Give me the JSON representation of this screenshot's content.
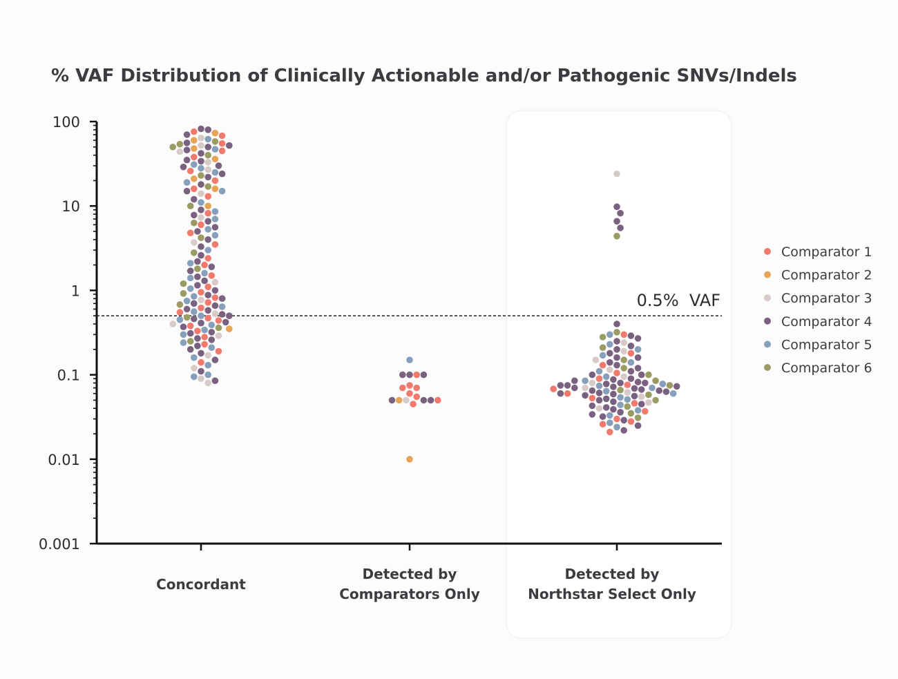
{
  "chart_data": {
    "type": "scatter",
    "subtype": "beeswarm",
    "title": "% VAF Distribution of Clinically Actionable and/or Pathogenic SNVs/Indels",
    "y_scale": "log",
    "ylim": [
      0.001,
      100
    ],
    "y_ticks": [
      {
        "value": 100,
        "label": "100"
      },
      {
        "value": 10,
        "label": "10"
      },
      {
        "value": 1,
        "label": "1"
      },
      {
        "value": 0.1,
        "label": "0.1"
      },
      {
        "value": 0.01,
        "label": "0.01"
      },
      {
        "value": 0.001,
        "label": "0.001"
      }
    ],
    "categories": [
      {
        "lines": [
          "Concordant"
        ],
        "highlight": false
      },
      {
        "lines": [
          "Detected by",
          "Comparators Only"
        ],
        "highlight": false
      },
      {
        "lines": [
          "Detected by",
          "Northstar Select Only"
        ],
        "highlight": true
      }
    ],
    "reference_line": {
      "value": 0.5,
      "label": "0.5%  VAF"
    },
    "legend_position": "right",
    "series": [
      {
        "name": "Comparator 1",
        "color": "#f07a6e"
      },
      {
        "name": "Comparator 2",
        "color": "#e8a456"
      },
      {
        "name": "Comparator 3",
        "color": "#d8cbc7"
      },
      {
        "name": "Comparator 4",
        "color": "#7a6180"
      },
      {
        "name": "Comparator 5",
        "color": "#869fbb"
      },
      {
        "name": "Comparator 6",
        "color": "#9a9c64"
      }
    ],
    "points": {
      "Concordant": [
        [
          82,
          3
        ],
        [
          80,
          3
        ],
        [
          76,
          0
        ],
        [
          73,
          1
        ],
        [
          70,
          3
        ],
        [
          68,
          0
        ],
        [
          64,
          2
        ],
        [
          62,
          4
        ],
        [
          60,
          1
        ],
        [
          58,
          5
        ],
        [
          56,
          3
        ],
        [
          55,
          0
        ],
        [
          54,
          5
        ],
        [
          52,
          2
        ],
        [
          52,
          3
        ],
        [
          50,
          3
        ],
        [
          50,
          5
        ],
        [
          48,
          1
        ],
        [
          47,
          4
        ],
        [
          46,
          3
        ],
        [
          45,
          0
        ],
        [
          44,
          2
        ],
        [
          42,
          3
        ],
        [
          40,
          5
        ],
        [
          38,
          0
        ],
        [
          36,
          1
        ],
        [
          35,
          3
        ],
        [
          34,
          3
        ],
        [
          33,
          2
        ],
        [
          31,
          4
        ],
        [
          30,
          3
        ],
        [
          29,
          3
        ],
        [
          28,
          4
        ],
        [
          27,
          2
        ],
        [
          26,
          0
        ],
        [
          25,
          4
        ],
        [
          24,
          3
        ],
        [
          23,
          5
        ],
        [
          22,
          3
        ],
        [
          21,
          1
        ],
        [
          20,
          0
        ],
        [
          19,
          4
        ],
        [
          18,
          3
        ],
        [
          17,
          5
        ],
        [
          16,
          0
        ],
        [
          16,
          1
        ],
        [
          15,
          3
        ],
        [
          15,
          4
        ],
        [
          14,
          2
        ],
        [
          13,
          0
        ],
        [
          12,
          3
        ],
        [
          11,
          4
        ],
        [
          10,
          1
        ],
        [
          10,
          5
        ],
        [
          9,
          3
        ],
        [
          8.6,
          4
        ],
        [
          8.2,
          0
        ],
        [
          7.8,
          3
        ],
        [
          7.3,
          2
        ],
        [
          7,
          4
        ],
        [
          6.6,
          3
        ],
        [
          6.3,
          5
        ],
        [
          6,
          0
        ],
        [
          5.6,
          3
        ],
        [
          5.3,
          4
        ],
        [
          5,
          3
        ],
        [
          4.8,
          0
        ],
        [
          4.5,
          4
        ],
        [
          4.2,
          5
        ],
        [
          4,
          3
        ],
        [
          3.7,
          2
        ],
        [
          3.5,
          0
        ],
        [
          3.3,
          3
        ],
        [
          3,
          4
        ],
        [
          2.8,
          5
        ],
        [
          2.6,
          3
        ],
        [
          2.4,
          0
        ],
        [
          2.2,
          3
        ],
        [
          2.1,
          4
        ],
        [
          2,
          0
        ],
        [
          1.9,
          3
        ],
        [
          1.8,
          5
        ],
        [
          1.7,
          3
        ],
        [
          1.6,
          4
        ],
        [
          1.5,
          0
        ],
        [
          1.45,
          3
        ],
        [
          1.4,
          4
        ],
        [
          1.3,
          3
        ],
        [
          1.25,
          2
        ],
        [
          1.2,
          5
        ],
        [
          1.15,
          3
        ],
        [
          1.1,
          0
        ],
        [
          1.05,
          4
        ],
        [
          1,
          3
        ],
        [
          0.95,
          0
        ],
        [
          0.92,
          5
        ],
        [
          0.88,
          3
        ],
        [
          0.85,
          4
        ],
        [
          0.82,
          0
        ],
        [
          0.8,
          3
        ],
        [
          0.77,
          2
        ],
        [
          0.75,
          4
        ],
        [
          0.72,
          0
        ],
        [
          0.7,
          3
        ],
        [
          0.68,
          5
        ],
        [
          0.66,
          3
        ],
        [
          0.64,
          4
        ],
        [
          0.62,
          0
        ],
        [
          0.6,
          3
        ],
        [
          0.58,
          3
        ],
        [
          0.56,
          4
        ],
        [
          0.55,
          0
        ],
        [
          0.53,
          2
        ],
        [
          0.52,
          3
        ],
        [
          0.5,
          4
        ],
        [
          0.5,
          3
        ],
        [
          0.48,
          5
        ],
        [
          0.47,
          0
        ],
        [
          0.46,
          3
        ],
        [
          0.45,
          4
        ],
        [
          0.44,
          0
        ],
        [
          0.42,
          3
        ],
        [
          0.41,
          3
        ],
        [
          0.4,
          2
        ],
        [
          0.39,
          4
        ],
        [
          0.38,
          0
        ],
        [
          0.37,
          3
        ],
        [
          0.36,
          5
        ],
        [
          0.35,
          1
        ],
        [
          0.34,
          4
        ],
        [
          0.33,
          0
        ],
        [
          0.32,
          3
        ],
        [
          0.31,
          3
        ],
        [
          0.3,
          4
        ],
        [
          0.29,
          2
        ],
        [
          0.28,
          0
        ],
        [
          0.27,
          3
        ],
        [
          0.26,
          3
        ],
        [
          0.25,
          5
        ],
        [
          0.24,
          4
        ],
        [
          0.23,
          0
        ],
        [
          0.22,
          3
        ],
        [
          0.21,
          4
        ],
        [
          0.2,
          3
        ],
        [
          0.19,
          0
        ],
        [
          0.18,
          3
        ],
        [
          0.17,
          2
        ],
        [
          0.16,
          4
        ],
        [
          0.15,
          3
        ],
        [
          0.14,
          0
        ],
        [
          0.13,
          4
        ],
        [
          0.12,
          2
        ],
        [
          0.11,
          3
        ],
        [
          0.1,
          4
        ],
        [
          0.095,
          4
        ],
        [
          0.09,
          2
        ],
        [
          0.085,
          3
        ],
        [
          0.08,
          2
        ]
      ],
      "Detected by Comparators Only": [
        [
          0.15,
          4
        ],
        [
          0.1,
          3
        ],
        [
          0.1,
          0
        ],
        [
          0.1,
          3
        ],
        [
          0.1,
          3
        ],
        [
          0.075,
          0
        ],
        [
          0.07,
          0
        ],
        [
          0.07,
          0
        ],
        [
          0.06,
          0
        ],
        [
          0.055,
          0
        ],
        [
          0.05,
          2
        ],
        [
          0.05,
          1
        ],
        [
          0.05,
          3
        ],
        [
          0.05,
          3
        ],
        [
          0.05,
          3
        ],
        [
          0.05,
          0
        ],
        [
          0.045,
          0
        ],
        [
          0.01,
          1
        ]
      ],
      "Detected by Northstar Select Only": [
        [
          24,
          2
        ],
        [
          9.8,
          3
        ],
        [
          8.2,
          3
        ],
        [
          6.6,
          3
        ],
        [
          5.5,
          3
        ],
        [
          4.4,
          5
        ],
        [
          0.4,
          3
        ],
        [
          0.32,
          5
        ],
        [
          0.3,
          0
        ],
        [
          0.3,
          4
        ],
        [
          0.29,
          3
        ],
        [
          0.28,
          5
        ],
        [
          0.27,
          3
        ],
        [
          0.25,
          3
        ],
        [
          0.24,
          2
        ],
        [
          0.23,
          4
        ],
        [
          0.22,
          3
        ],
        [
          0.21,
          5
        ],
        [
          0.2,
          3
        ],
        [
          0.2,
          4
        ],
        [
          0.19,
          2
        ],
        [
          0.18,
          3
        ],
        [
          0.18,
          0
        ],
        [
          0.17,
          4
        ],
        [
          0.16,
          3
        ],
        [
          0.16,
          3
        ],
        [
          0.15,
          5
        ],
        [
          0.15,
          2
        ],
        [
          0.14,
          3
        ],
        [
          0.14,
          4
        ],
        [
          0.13,
          3
        ],
        [
          0.13,
          0
        ],
        [
          0.12,
          5
        ],
        [
          0.12,
          3
        ],
        [
          0.115,
          2
        ],
        [
          0.11,
          3
        ],
        [
          0.11,
          4
        ],
        [
          0.105,
          0
        ],
        [
          0.1,
          3
        ],
        [
          0.1,
          3
        ],
        [
          0.1,
          5
        ],
        [
          0.095,
          2
        ],
        [
          0.095,
          4
        ],
        [
          0.09,
          3
        ],
        [
          0.09,
          0
        ],
        [
          0.088,
          3
        ],
        [
          0.085,
          4
        ],
        [
          0.085,
          5
        ],
        [
          0.082,
          3
        ],
        [
          0.08,
          3
        ],
        [
          0.08,
          2
        ],
        [
          0.078,
          3
        ],
        [
          0.078,
          4
        ],
        [
          0.076,
          0
        ],
        [
          0.075,
          3
        ],
        [
          0.075,
          5
        ],
        [
          0.074,
          4
        ],
        [
          0.073,
          3
        ],
        [
          0.072,
          3
        ],
        [
          0.07,
          2
        ],
        [
          0.07,
          4
        ],
        [
          0.069,
          3
        ],
        [
          0.068,
          0
        ],
        [
          0.067,
          3
        ],
        [
          0.066,
          5
        ],
        [
          0.065,
          3
        ],
        [
          0.064,
          4
        ],
        [
          0.063,
          3
        ],
        [
          0.062,
          2
        ],
        [
          0.061,
          3
        ],
        [
          0.06,
          0
        ],
        [
          0.06,
          4
        ],
        [
          0.059,
          3
        ],
        [
          0.058,
          5
        ],
        [
          0.057,
          3
        ],
        [
          0.056,
          3
        ],
        [
          0.055,
          2
        ],
        [
          0.054,
          4
        ],
        [
          0.053,
          0
        ],
        [
          0.052,
          3
        ],
        [
          0.051,
          4
        ],
        [
          0.05,
          3
        ],
        [
          0.05,
          5
        ],
        [
          0.048,
          3
        ],
        [
          0.047,
          2
        ],
        [
          0.046,
          0
        ],
        [
          0.045,
          3
        ],
        [
          0.044,
          4
        ],
        [
          0.043,
          3
        ],
        [
          0.042,
          5
        ],
        [
          0.041,
          3
        ],
        [
          0.04,
          2
        ],
        [
          0.039,
          3
        ],
        [
          0.038,
          4
        ],
        [
          0.037,
          0
        ],
        [
          0.036,
          3
        ],
        [
          0.035,
          5
        ],
        [
          0.034,
          3
        ],
        [
          0.033,
          4
        ],
        [
          0.032,
          3
        ],
        [
          0.031,
          5
        ],
        [
          0.03,
          0
        ],
        [
          0.029,
          3
        ],
        [
          0.028,
          0
        ],
        [
          0.027,
          4
        ],
        [
          0.026,
          0
        ],
        [
          0.025,
          3
        ],
        [
          0.024,
          4
        ],
        [
          0.022,
          3
        ],
        [
          0.021,
          0
        ],
        [
          0.08,
          3
        ],
        [
          0.065,
          3
        ],
        [
          0.075,
          3
        ],
        [
          0.06,
          3
        ],
        [
          0.085,
          3
        ],
        [
          0.07,
          3
        ]
      ]
    }
  }
}
